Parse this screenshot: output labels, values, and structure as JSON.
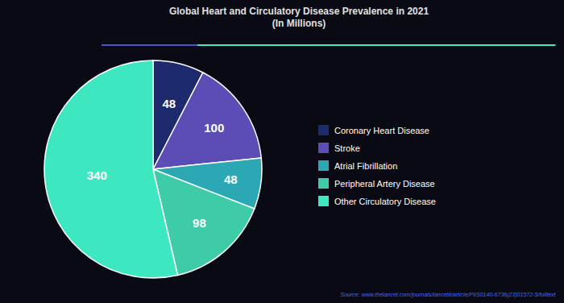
{
  "chart_data": {
    "type": "pie",
    "title": "Global Heart and Circulatory Disease Prevalence in 2021\n(In Millions)",
    "categories": [
      "Coronary Heart Disease",
      "Stroke",
      "Atrial Fibrillation",
      "Peripheral Artery Disease",
      "Other Circulatory Disease"
    ],
    "values": [
      48,
      100,
      48,
      98,
      340
    ],
    "colors": [
      "#1e2a6e",
      "#5b4db5",
      "#2ca8b5",
      "#3ecba8",
      "#3de8c0"
    ],
    "data_labels": true,
    "legend": "right",
    "annotations": [
      "Source: www.thelancet.com/journals/lancebt/article/PIIS0140-6736(23)01572-5/fulltext"
    ]
  }
}
